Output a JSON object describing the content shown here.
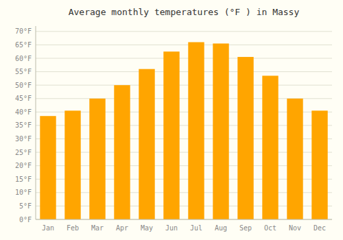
{
  "chart_data": {
    "type": "bar",
    "title": "Average monthly temperatures (°F ) in Massy",
    "categories": [
      "Jan",
      "Feb",
      "Mar",
      "Apr",
      "May",
      "Jun",
      "Jul",
      "Aug",
      "Sep",
      "Oct",
      "Nov",
      "Dec"
    ],
    "values": [
      38.5,
      40.5,
      45.0,
      50.0,
      56.0,
      62.5,
      66.0,
      65.5,
      60.5,
      53.5,
      45.0,
      40.5
    ],
    "color": "#FFA500",
    "ylim": [
      0,
      72
    ],
    "yticks": [
      {
        "value": 0,
        "label": "0°F"
      },
      {
        "value": 5,
        "label": "5°F"
      },
      {
        "value": 10,
        "label": "10°F"
      },
      {
        "value": 15,
        "label": "15°F"
      },
      {
        "value": 20,
        "label": "20°F"
      },
      {
        "value": 25,
        "label": "25°F"
      },
      {
        "value": 30,
        "label": "30°F"
      },
      {
        "value": 35,
        "label": "35°F"
      },
      {
        "value": 40,
        "label": "40°F"
      },
      {
        "value": 45,
        "label": "45°F"
      },
      {
        "value": 50,
        "label": "50°F"
      },
      {
        "value": 55,
        "label": "55°F"
      },
      {
        "value": 60,
        "label": "60°F"
      },
      {
        "value": 65,
        "label": "65°F"
      },
      {
        "value": 70,
        "label": "70°F"
      }
    ],
    "grid": true
  }
}
